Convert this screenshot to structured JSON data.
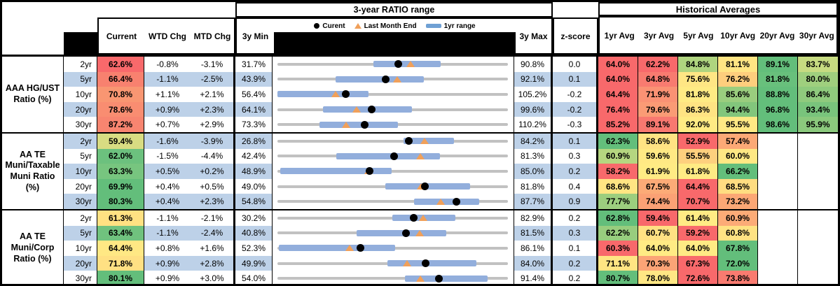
{
  "header": {
    "range_title": "3-year RATIO range",
    "hist_title": "Historical Averages",
    "legend": {
      "current": "Curent",
      "last_month_end": "Last Month End",
      "range_1yr": "1yr range"
    },
    "col_current": "Current",
    "col_wtd": "WTD Chg",
    "col_mtd": "MTD Chg",
    "col_min": "3y Min",
    "col_max": "3y Max",
    "col_z": "z-score",
    "avg_cols": [
      "1yr Avg",
      "3yr Avg",
      "5yr Avg",
      "10yr Avg",
      "20yr Avg",
      "30yr Avg"
    ]
  },
  "colors": {
    "red": "#F8696B",
    "yellow": "#FFEB84",
    "green": "#63BE7B",
    "stripe_blue": "#BDD1E8",
    "bar_blue": "#92AEDC",
    "track_gray": "#C1C1C1",
    "triangle_orange": "#F0A05A",
    "dot_black": "#000000"
  },
  "chart_data": {
    "type": "table",
    "title": "3-year RATIO range",
    "legend_entries": [
      "Curent",
      "Last Month End",
      "1yr range"
    ],
    "groups": [
      {
        "label": "AAA HG/UST Ratio (%)",
        "label_lines": [
          "AAA HG/UST",
          "Ratio (%)"
        ],
        "rows": [
          {
            "tenor": "2yr",
            "current": "62.6%",
            "current_bg": "#F8696B",
            "wtd": "-0.8%",
            "mtd": "-3.1%",
            "min": "31.7%",
            "max": "90.8%",
            "z": "0.0",
            "range": {
              "min": 31.7,
              "max": 90.8,
              "current": 62.6,
              "last_month_end": 65.7,
              "yr1_lo": 56.3,
              "yr1_hi": 73.5
            },
            "avgs": [
              {
                "v": "64.0%",
                "bg": "#F8696B"
              },
              {
                "v": "62.2%",
                "bg": "#F8696B"
              },
              {
                "v": "84.8%",
                "bg": "#AFD47F"
              },
              {
                "v": "81.1%",
                "bg": "#FFE583"
              },
              {
                "v": "89.1%",
                "bg": "#63BE7B"
              },
              {
                "v": "83.7%",
                "bg": "#C7DB81"
              }
            ]
          },
          {
            "tenor": "5yr",
            "current": "66.4%",
            "current_bg": "#F8816F",
            "wtd": "-1.1%",
            "mtd": "-2.5%",
            "min": "43.9%",
            "max": "92.1%",
            "z": "0.1",
            "range": {
              "min": 43.9,
              "max": 92.1,
              "current": 66.4,
              "last_month_end": 68.9,
              "yr1_lo": 56.0,
              "yr1_hi": 74.4
            },
            "avgs": [
              {
                "v": "64.0%",
                "bg": "#F8696B"
              },
              {
                "v": "64.8%",
                "bg": "#F87B70"
              },
              {
                "v": "75.6%",
                "bg": "#FFE684"
              },
              {
                "v": "76.2%",
                "bg": "#FECE7D"
              },
              {
                "v": "81.8%",
                "bg": "#68C07C"
              },
              {
                "v": "80.0%",
                "bg": "#9FCF7E"
              }
            ]
          },
          {
            "tenor": "10yr",
            "current": "70.8%",
            "current_bg": "#F99672",
            "wtd": "+1.1%",
            "mtd": "+2.1%",
            "min": "56.4%",
            "max": "105.2%",
            "z": "-0.2",
            "range": {
              "min": 56.4,
              "max": 105.2,
              "current": 70.8,
              "last_month_end": 68.7,
              "yr1_lo": 56.4,
              "yr1_hi": 75.6
            },
            "avgs": [
              {
                "v": "64.4%",
                "bg": "#F8696B"
              },
              {
                "v": "71.9%",
                "bg": "#FA9274"
              },
              {
                "v": "81.8%",
                "bg": "#FFEB84"
              },
              {
                "v": "85.6%",
                "bg": "#9ACD7E"
              },
              {
                "v": "88.8%",
                "bg": "#63BE7B"
              },
              {
                "v": "86.4%",
                "bg": "#8FCA7D"
              }
            ]
          },
          {
            "tenor": "20yr",
            "current": "78.6%",
            "current_bg": "#F98D71",
            "wtd": "+0.9%",
            "mtd": "+2.3%",
            "min": "64.1%",
            "max": "99.6%",
            "z": "-0.2",
            "range": {
              "min": 64.1,
              "max": 99.6,
              "current": 78.6,
              "last_month_end": 76.3,
              "yr1_lo": 71.1,
              "yr1_hi": 84.8
            },
            "avgs": [
              {
                "v": "76.4%",
                "bg": "#F8696B"
              },
              {
                "v": "79.6%",
                "bg": "#FA9B75"
              },
              {
                "v": "86.3%",
                "bg": "#FFE383"
              },
              {
                "v": "94.4%",
                "bg": "#82C67C"
              },
              {
                "v": "96.8%",
                "bg": "#63BE7B"
              },
              {
                "v": "93.4%",
                "bg": "#79C47C"
              }
            ]
          },
          {
            "tenor": "30yr",
            "current": "87.2%",
            "current_bg": "#F88570",
            "wtd": "+0.7%",
            "mtd": "+2.9%",
            "min": "73.3%",
            "max": "110.2%",
            "z": "-0.3",
            "range": {
              "min": 73.3,
              "max": 110.2,
              "current": 87.2,
              "last_month_end": 84.3,
              "yr1_lo": 80.0,
              "yr1_hi": 92.5
            },
            "avgs": [
              {
                "v": "85.2%",
                "bg": "#F8696B"
              },
              {
                "v": "89.1%",
                "bg": "#F87870"
              },
              {
                "v": "92.0%",
                "bg": "#FFEB84"
              },
              {
                "v": "95.5%",
                "bg": "#FFE984"
              },
              {
                "v": "98.6%",
                "bg": "#63BE7B"
              },
              {
                "v": "95.9%",
                "bg": "#8BC97D"
              }
            ]
          }
        ]
      },
      {
        "label": "AA TE Muni/Taxable Muni Ratio (%)",
        "label_lines": [
          "AA TE",
          "Muni/Taxable",
          "Muni Ratio",
          "(%)"
        ],
        "rows": [
          {
            "tenor": "2yr",
            "current": "59.4%",
            "current_bg": "#D8DC82",
            "wtd": "-1.6%",
            "mtd": "-3.9%",
            "min": "26.8%",
            "max": "84.2%",
            "z": "0.1",
            "range": {
              "min": 26.8,
              "max": 84.2,
              "current": 59.4,
              "last_month_end": 63.3,
              "yr1_lo": 58.1,
              "yr1_hi": 70.6
            },
            "avgs": [
              {
                "v": "62.3%",
                "bg": "#63BE7B"
              },
              {
                "v": "58.6%",
                "bg": "#FFE383"
              },
              {
                "v": "52.9%",
                "bg": "#F8696B"
              },
              {
                "v": "57.4%",
                "bg": "#FCA976"
              },
              null,
              null
            ]
          },
          {
            "tenor": "5yr",
            "current": "62.0%",
            "current_bg": "#6CC17E",
            "wtd": "-1.5%",
            "mtd": "-4.4%",
            "min": "42.4%",
            "max": "81.3%",
            "z": "0.3",
            "range": {
              "min": 42.4,
              "max": 81.3,
              "current": 62.0,
              "last_month_end": 66.4,
              "yr1_lo": 52.3,
              "yr1_hi": 69.7
            },
            "avgs": [
              {
                "v": "60.9%",
                "bg": "#B5D680"
              },
              {
                "v": "59.6%",
                "bg": "#FFE984"
              },
              {
                "v": "55.5%",
                "bg": "#FED07E"
              },
              {
                "v": "60.0%",
                "bg": "#FFE884"
              },
              null,
              null
            ]
          },
          {
            "tenor": "10yr",
            "current": "63.3%",
            "current_bg": "#77C57F",
            "wtd": "+0.5%",
            "mtd": "+0.2%",
            "min": "48.9%",
            "max": "85.0%",
            "z": "0.2",
            "range": {
              "min": 48.9,
              "max": 85.0,
              "current": 63.3,
              "last_month_end": 63.1,
              "yr1_lo": 49.3,
              "yr1_hi": 66.7
            },
            "avgs": [
              {
                "v": "58.2%",
                "bg": "#F8696B"
              },
              {
                "v": "61.9%",
                "bg": "#FFEB84"
              },
              {
                "v": "61.8%",
                "bg": "#FFEB84"
              },
              {
                "v": "66.2%",
                "bg": "#63BE7B"
              },
              null,
              null
            ]
          },
          {
            "tenor": "20yr",
            "current": "69.9%",
            "current_bg": "#63BE7B",
            "wtd": "+0.4%",
            "mtd": "+0.5%",
            "min": "49.0%",
            "max": "81.8%",
            "z": "0.4",
            "range": {
              "min": 49.0,
              "max": 81.8,
              "current": 69.9,
              "last_month_end": 69.4,
              "yr1_lo": 64.3,
              "yr1_hi": 76.3
            },
            "avgs": [
              {
                "v": "68.6%",
                "bg": "#FFE583"
              },
              {
                "v": "67.5%",
                "bg": "#FCAB77"
              },
              {
                "v": "64.4%",
                "bg": "#F8696B"
              },
              {
                "v": "68.5%",
                "bg": "#FFDD81"
              },
              null,
              null
            ]
          },
          {
            "tenor": "30yr",
            "current": "80.3%",
            "current_bg": "#63BE7B",
            "wtd": "+0.4%",
            "mtd": "+2.3%",
            "min": "54.8%",
            "max": "87.7%",
            "z": "0.9",
            "range": {
              "min": 54.8,
              "max": 87.7,
              "current": 80.3,
              "last_month_end": 78.0,
              "yr1_lo": 74.2,
              "yr1_hi": 83.5
            },
            "avgs": [
              {
                "v": "77.7%",
                "bg": "#9CCE7E"
              },
              {
                "v": "74.4%",
                "bg": "#FBA175"
              },
              {
                "v": "70.7%",
                "bg": "#F8696B"
              },
              {
                "v": "73.2%",
                "bg": "#FCA775"
              },
              null,
              null
            ]
          }
        ]
      },
      {
        "label": "AA TE Muni/Corp Ratio (%)",
        "label_lines": [
          "AA TE",
          "Muni/Corp",
          "Ratio (%)"
        ],
        "rows": [
          {
            "tenor": "2yr",
            "current": "61.3%",
            "current_bg": "#FFE182",
            "wtd": "-1.1%",
            "mtd": "-2.1%",
            "min": "30.2%",
            "max": "82.9%",
            "z": "0.2",
            "range": {
              "min": 30.2,
              "max": 82.9,
              "current": 61.3,
              "last_month_end": 63.4,
              "yr1_lo": 56.4,
              "yr1_hi": 70.7
            },
            "avgs": [
              {
                "v": "62.8%",
                "bg": "#63BE7B"
              },
              {
                "v": "59.4%",
                "bg": "#F8696B"
              },
              {
                "v": "61.4%",
                "bg": "#FFEB84"
              },
              {
                "v": "60.9%",
                "bg": "#FCAB77"
              },
              null,
              null
            ]
          },
          {
            "tenor": "5yr",
            "current": "63.4%",
            "current_bg": "#70C27E",
            "wtd": "-1.1%",
            "mtd": "-2.4%",
            "min": "40.8%",
            "max": "81.5%",
            "z": "0.3",
            "range": {
              "min": 40.8,
              "max": 81.5,
              "current": 63.4,
              "last_month_end": 65.8,
              "yr1_lo": 54.7,
              "yr1_hi": 70.5
            },
            "avgs": [
              {
                "v": "62.2%",
                "bg": "#98CD7E"
              },
              {
                "v": "60.7%",
                "bg": "#FFE183"
              },
              {
                "v": "59.2%",
                "bg": "#F8696B"
              },
              {
                "v": "60.8%",
                "bg": "#FFE283"
              },
              null,
              null
            ]
          },
          {
            "tenor": "10yr",
            "current": "64.4%",
            "current_bg": "#FFE884",
            "wtd": "+0.8%",
            "mtd": "+1.6%",
            "min": "52.3%",
            "max": "86.1%",
            "z": "0.1",
            "range": {
              "min": 52.3,
              "max": 86.1,
              "current": 64.4,
              "last_month_end": 62.8,
              "yr1_lo": 52.5,
              "yr1_hi": 69.5
            },
            "avgs": [
              {
                "v": "60.3%",
                "bg": "#F8696B"
              },
              {
                "v": "64.0%",
                "bg": "#FFEB84"
              },
              {
                "v": "64.0%",
                "bg": "#FFEB84"
              },
              {
                "v": "67.8%",
                "bg": "#63BE7B"
              },
              null,
              null
            ]
          },
          {
            "tenor": "20yr",
            "current": "71.8%",
            "current_bg": "#FFE083",
            "wtd": "+0.9%",
            "mtd": "+2.8%",
            "min": "49.9%",
            "max": "84.0%",
            "z": "0.2",
            "range": {
              "min": 49.9,
              "max": 84.0,
              "current": 71.8,
              "last_month_end": 69.0,
              "yr1_lo": 66.1,
              "yr1_hi": 79.2
            },
            "avgs": [
              {
                "v": "71.1%",
                "bg": "#FFE583"
              },
              {
                "v": "70.3%",
                "bg": "#FBA476"
              },
              {
                "v": "67.3%",
                "bg": "#F8696B"
              },
              {
                "v": "72.0%",
                "bg": "#63BE7B"
              },
              null,
              null
            ]
          },
          {
            "tenor": "30yr",
            "current": "80.1%",
            "current_bg": "#63BE7B",
            "wtd": "+0.9%",
            "mtd": "+3.0%",
            "min": "54.0%",
            "max": "91.4%",
            "z": "0.2",
            "range": {
              "min": 54.0,
              "max": 91.4,
              "current": 80.1,
              "last_month_end": 77.1,
              "yr1_lo": 74.6,
              "yr1_hi": 88.0
            },
            "avgs": [
              {
                "v": "80.7%",
                "bg": "#63BE7B"
              },
              {
                "v": "78.0%",
                "bg": "#FFE784"
              },
              {
                "v": "72.6%",
                "bg": "#F8696B"
              },
              {
                "v": "73.8%",
                "bg": "#F97B70"
              },
              null,
              null
            ]
          }
        ]
      }
    ]
  }
}
